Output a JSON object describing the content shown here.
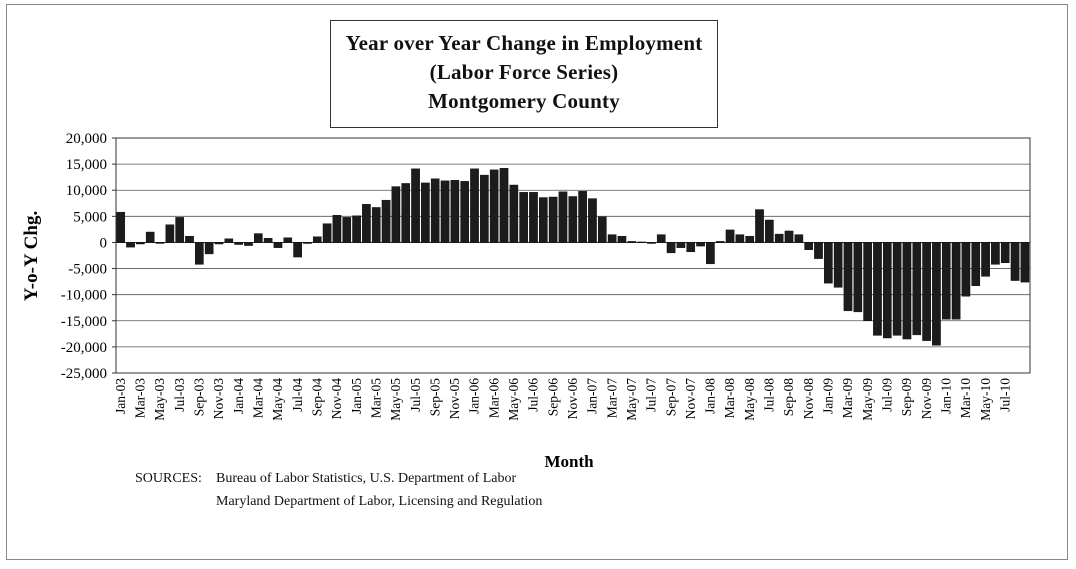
{
  "chart_data": {
    "type": "bar",
    "title_lines": [
      "Year over Year Change in Employment",
      "(Labor Force Series)",
      "Montgomery County"
    ],
    "xlabel": "Month",
    "ylabel": "Y-o-Y Chg.",
    "ylim": [
      -25000,
      20000
    ],
    "yticks": [
      20000,
      15000,
      10000,
      5000,
      0,
      -5000,
      -10000,
      -15000,
      -20000,
      -25000
    ],
    "ytick_labels": [
      "20,000",
      "15,000",
      "10,000",
      "5,000",
      "0",
      "-5,000",
      "-10,000",
      "-15,000",
      "-20,000",
      "-25,000"
    ],
    "xtick_labels": [
      "Jan-03",
      "Mar-03",
      "May-03",
      "Jul-03",
      "Sep-03",
      "Nov-03",
      "Jan-04",
      "Mar-04",
      "May-04",
      "Jul-04",
      "Sep-04",
      "Nov-04",
      "Jan-05",
      "Mar-05",
      "May-05",
      "Jul-05",
      "Sep-05",
      "Nov-05",
      "Jan-06",
      "Mar-06",
      "May-06",
      "Jul-06",
      "Sep-06",
      "Nov-06",
      "Jan-07",
      "Mar-07",
      "May-07",
      "Jul-07",
      "Sep-07",
      "Nov-07",
      "Jan-08",
      "Mar-08",
      "May-08",
      "Jul-08",
      "Sep-08",
      "Nov-08",
      "Jan-09",
      "Mar-09",
      "May-09",
      "Jul-09",
      "Sep-09",
      "Nov-09",
      "Jan-10",
      "Mar-10",
      "May-10",
      "Jul-10"
    ],
    "grid": true,
    "series": [
      {
        "name": "Y-o-Y Chg.",
        "values": [
          5800,
          -900,
          -300,
          2000,
          -200,
          3400,
          4800,
          1200,
          -4200,
          -2200,
          -300,
          700,
          -400,
          -600,
          1700,
          800,
          -1000,
          900,
          -2800,
          -200,
          1100,
          3600,
          5200,
          4800,
          5100,
          7300,
          6700,
          8100,
          10700,
          11300,
          14100,
          11400,
          12200,
          11800,
          11900,
          11700,
          14100,
          12900,
          13900,
          14200,
          11000,
          9600,
          9600,
          8600,
          8700,
          9700,
          8800,
          9800,
          8400,
          4900,
          1500,
          1200,
          200,
          100,
          -200,
          1500,
          -2000,
          -1000,
          -1800,
          -700,
          -4100,
          200,
          2400,
          1500,
          1200,
          6300,
          4300,
          1600,
          2200,
          1500,
          -1400,
          -3100,
          -7800,
          -8600,
          -13100,
          -13300,
          -15000,
          -17800,
          -18300,
          -17800,
          -18500,
          -17700,
          -18800,
          -19700,
          -14700,
          -14700,
          -10300,
          -8300,
          -6500,
          -4200,
          -3900,
          -7300,
          -7600
        ]
      }
    ]
  },
  "sources": {
    "label": "SOURCES:",
    "line1": "Bureau of Labor Statistics, U.S. Department of Labor",
    "line2": "Maryland Department of Labor, Licensing and Regulation"
  }
}
